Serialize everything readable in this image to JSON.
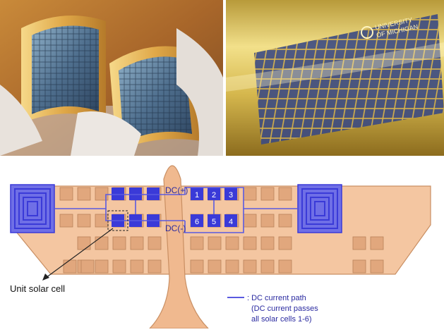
{
  "photos": {
    "right_brand_line1": "UNIVERSITY",
    "right_brand_line2": "OF MICHIGAN"
  },
  "diagram": {
    "dc_plus": "DC(+)",
    "dc_minus": "DC(-)",
    "cell_numbers": [
      "1",
      "2",
      "3",
      "4",
      "5",
      "6"
    ],
    "unit_label": "Unit solar cell",
    "legend_line1": ": DC current path",
    "legend_line2": "(DC current passes",
    "legend_line3": "all solar cells 1-6)",
    "colors": {
      "substrate": "#f4c6a1",
      "substrate_stroke": "#c98f63",
      "pad": "#e1a77d",
      "cell_blue": "#3a3ad8",
      "path_blue": "#5a5ae0",
      "antenna_fill": "#6f6fe6"
    }
  }
}
